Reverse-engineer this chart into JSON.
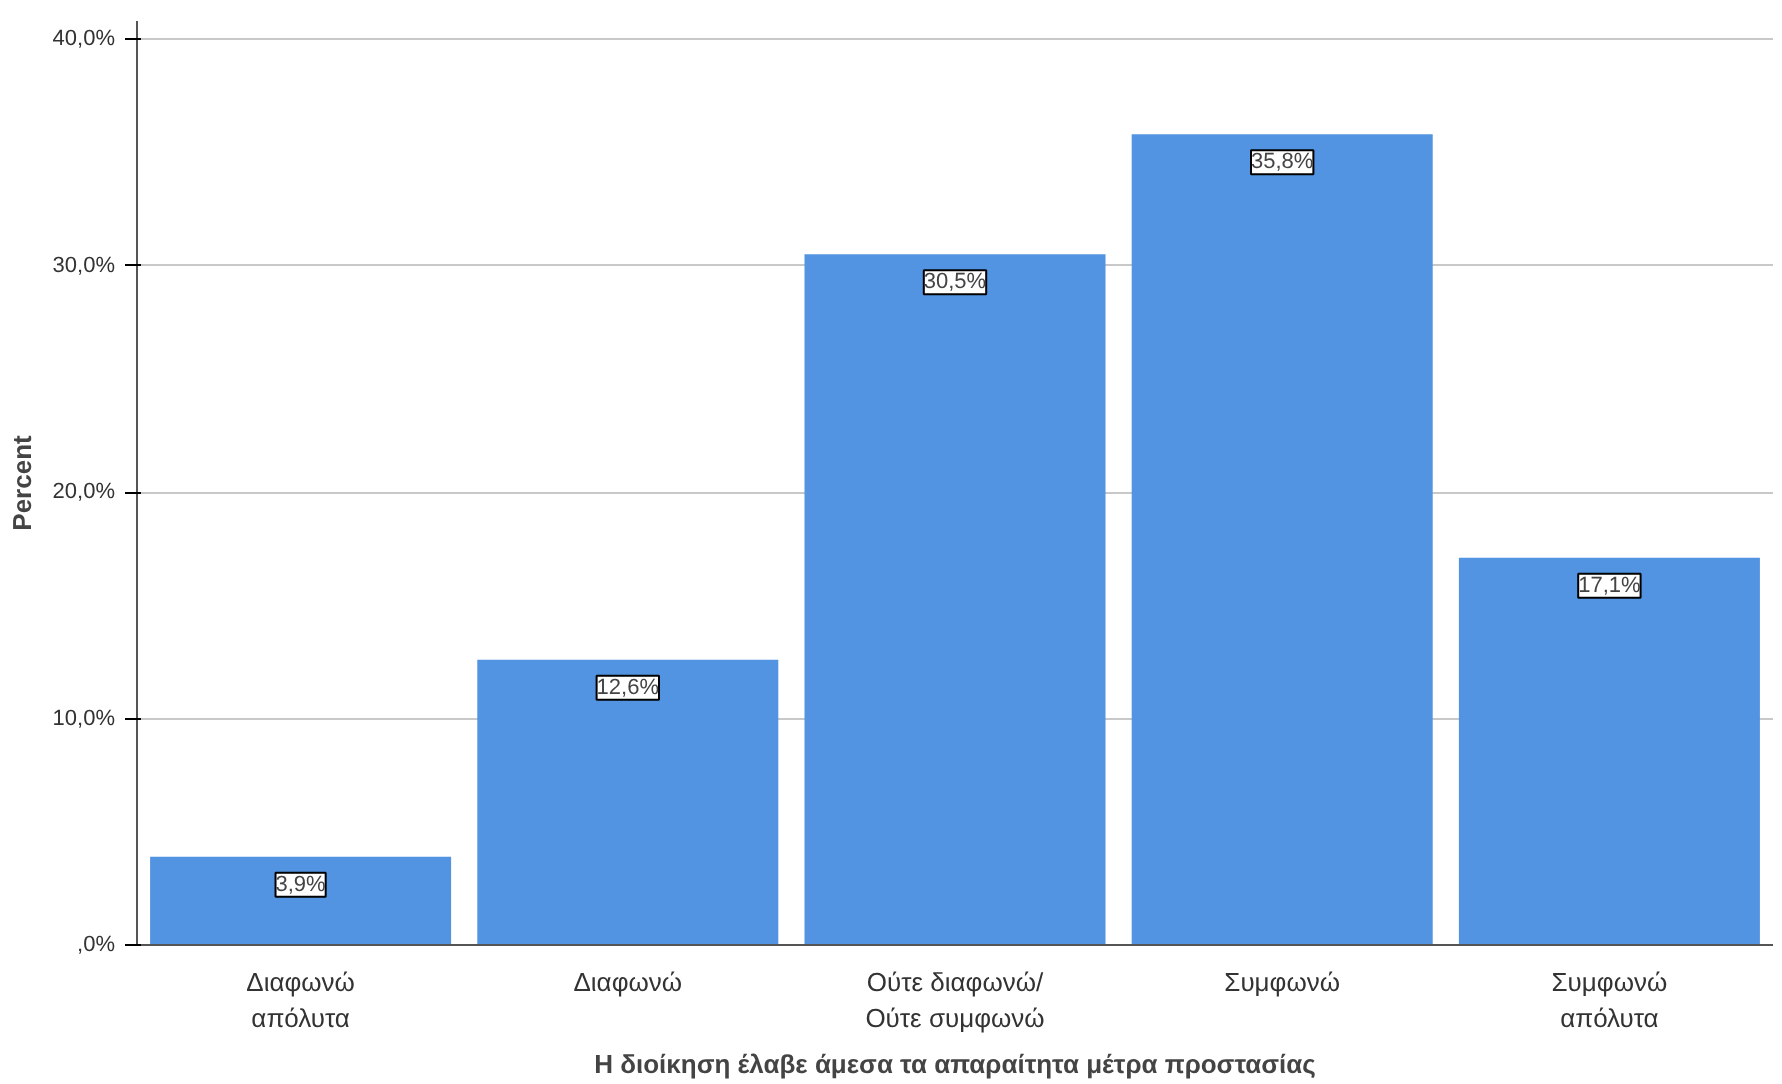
{
  "chart_data": {
    "type": "bar",
    "xlabel": "Η διοίκηση έλαβε άμεσα τα απαραίτητα μέτρα προστασίας",
    "ylabel": "Percent",
    "categories": [
      "Διαφωνώ\nαπόλυτα",
      "Διαφωνώ",
      "Ούτε διαφωνώ/\nΟύτε συμφωνώ",
      "Συμφωνώ",
      "Συμφωνώ\nαπόλυτα"
    ],
    "values": [
      3.9,
      12.6,
      30.5,
      35.8,
      17.1
    ],
    "value_labels": [
      "3,9%",
      "12,6%",
      "30,5%",
      "35,8%",
      "17,1%"
    ],
    "color": "#5294e2",
    "ylim": [
      0,
      40.8
    ],
    "yticks": [
      {
        "value": 0,
        "label": ",0%"
      },
      {
        "value": 10,
        "label": "10,0%"
      },
      {
        "value": 20,
        "label": "20,0%"
      },
      {
        "value": 30,
        "label": "30,0%"
      },
      {
        "value": 40,
        "label": "40,0%"
      }
    ],
    "grid": "y"
  }
}
